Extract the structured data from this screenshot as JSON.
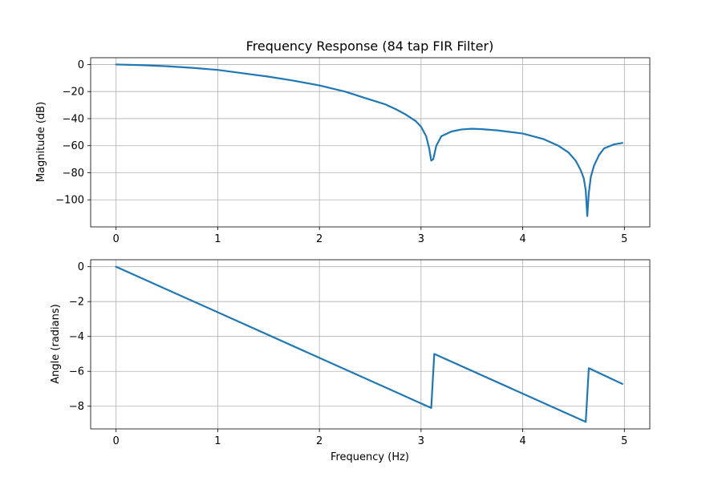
{
  "chart_data": [
    {
      "type": "line",
      "title": "Frequency Response (84 tap FIR Filter)",
      "xlabel": "",
      "ylabel": "Magnitude (dB)",
      "xlim": [
        -0.25,
        5.25
      ],
      "ylim": [
        -120,
        5
      ],
      "xticks": [
        0,
        1,
        2,
        3,
        4,
        5
      ],
      "xtick_labels": [
        "0",
        "1",
        "2",
        "3",
        "4",
        "5"
      ],
      "yticks": [
        0,
        -20,
        -40,
        -60,
        -80,
        -100
      ],
      "ytick_labels": [
        "0",
        "−20",
        "−40",
        "−60",
        "−80",
        "−100"
      ],
      "grid": true,
      "color": "#1f77b4",
      "series": [
        {
          "x": [
            0,
            0.25,
            0.5,
            0.75,
            1,
            1.25,
            1.5,
            1.75,
            2,
            2.25,
            2.5,
            2.65,
            2.75,
            2.85,
            2.95,
            3.0,
            3.05,
            3.08,
            3.1,
            3.12,
            3.15,
            3.2,
            3.3,
            3.4,
            3.5,
            3.6,
            3.75,
            4.0,
            4.2,
            4.35,
            4.45,
            4.52,
            4.57,
            4.6,
            4.62,
            4.635,
            4.65,
            4.67,
            4.7,
            4.75,
            4.8,
            4.9,
            4.98
          ],
          "y": [
            0,
            -0.5,
            -1.3,
            -2.5,
            -4,
            -6.5,
            -9,
            -12,
            -15.5,
            -20,
            -26,
            -29.5,
            -33,
            -37,
            -42,
            -46,
            -53,
            -62,
            -71,
            -70,
            -60,
            -53,
            -49.5,
            -48,
            -47.5,
            -47.8,
            -48.7,
            -51,
            -55,
            -60,
            -65,
            -71,
            -78,
            -84,
            -93,
            -112,
            -95,
            -83,
            -75,
            -67,
            -62,
            -59,
            -58
          ]
        }
      ]
    },
    {
      "type": "line",
      "title": "",
      "xlabel": "Frequency (Hz)",
      "ylabel": "Angle (radians)",
      "xlim": [
        -0.25,
        5.25
      ],
      "ylim": [
        -9.3,
        0.4
      ],
      "xticks": [
        0,
        1,
        2,
        3,
        4,
        5
      ],
      "xtick_labels": [
        "0",
        "1",
        "2",
        "3",
        "4",
        "5"
      ],
      "yticks": [
        0,
        -2,
        -4,
        -6,
        -8
      ],
      "ytick_labels": [
        "0",
        "−2",
        "−4",
        "−6",
        "−8"
      ],
      "grid": true,
      "color": "#1f77b4",
      "series": [
        {
          "x": [
            0,
            3.1,
            3.13,
            4.62,
            4.65,
            4.98
          ],
          "y": [
            0,
            -8.1,
            -5.0,
            -8.9,
            -5.82,
            -6.72
          ]
        }
      ]
    }
  ]
}
